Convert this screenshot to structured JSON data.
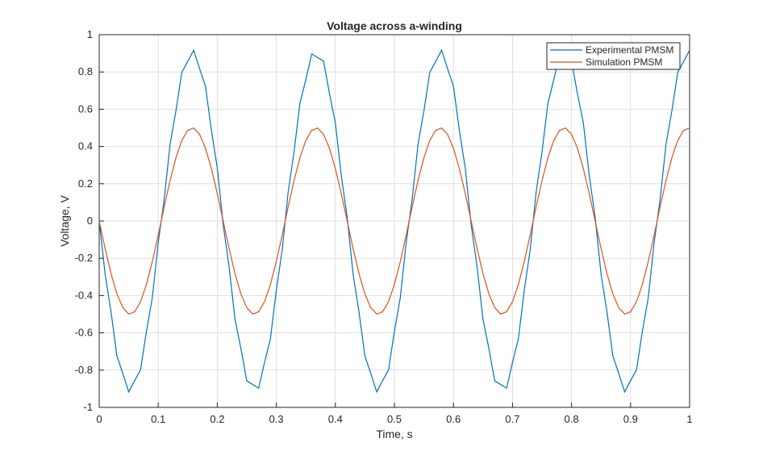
{
  "chart_data": {
    "type": "line",
    "title": "Voltage across a-winding",
    "xlabel": "Time, s",
    "ylabel": "Voltage, V",
    "x": [
      0,
      0.01,
      0.02,
      0.03,
      0.04,
      0.05,
      0.06,
      0.07,
      0.08,
      0.09,
      0.1,
      0.11,
      0.12,
      0.13,
      0.14,
      0.15,
      0.16,
      0.17,
      0.18,
      0.19,
      0.2,
      0.21,
      0.22,
      0.23,
      0.24,
      0.25,
      0.26,
      0.27,
      0.28,
      0.29,
      0.3,
      0.31,
      0.32,
      0.33,
      0.34,
      0.35,
      0.36,
      0.37,
      0.38,
      0.39,
      0.4,
      0.41,
      0.42,
      0.43,
      0.44,
      0.45,
      0.46,
      0.47,
      0.48,
      0.49,
      0.5,
      0.51,
      0.52,
      0.53,
      0.54,
      0.55,
      0.56,
      0.57,
      0.58,
      0.59,
      0.6,
      0.61,
      0.62,
      0.63,
      0.64,
      0.65,
      0.66,
      0.67,
      0.68,
      0.69,
      0.7,
      0.71,
      0.72,
      0.73,
      0.74,
      0.75,
      0.76,
      0.77,
      0.78,
      0.79,
      0.8,
      0.81,
      0.82,
      0.83,
      0.84,
      0.85,
      0.86,
      0.87,
      0.88,
      0.89,
      0.9,
      0.91,
      0.92,
      0.93,
      0.94,
      0.95,
      0.96,
      0.97,
      0.98,
      0.99,
      1
    ],
    "series": [
      {
        "name": "Experimental PMSM",
        "color": "#0072bd",
        "values": [
          0,
          -0.285,
          -0.487,
          -0.724,
          -0.818,
          -0.917,
          -0.857,
          -0.799,
          -0.592,
          -0.411,
          -0.114,
          0.114,
          0.411,
          0.592,
          0.799,
          0.857,
          0.917,
          0.818,
          0.724,
          0.487,
          0.285,
          -0.02,
          -0.245,
          -0.527,
          -0.684,
          -0.858,
          -0.877,
          -0.897,
          -0.759,
          -0.632,
          -0.371,
          -0.154,
          0.154,
          0.371,
          0.632,
          0.759,
          0.897,
          0.877,
          0.858,
          0.684,
          0.527,
          0.245,
          0.02,
          -0.285,
          -0.487,
          -0.724,
          -0.818,
          -0.917,
          -0.857,
          -0.799,
          -0.592,
          -0.411,
          -0.114,
          0.114,
          0.411,
          0.592,
          0.799,
          0.857,
          0.917,
          0.818,
          0.724,
          0.487,
          0.285,
          -0.02,
          -0.245,
          -0.527,
          -0.684,
          -0.858,
          -0.877,
          -0.897,
          -0.759,
          -0.632,
          -0.371,
          -0.154,
          0.154,
          0.371,
          0.632,
          0.759,
          0.897,
          0.877,
          0.858,
          0.684,
          0.527,
          0.245,
          0.02,
          -0.285,
          -0.487,
          -0.724,
          -0.818,
          -0.917,
          -0.857,
          -0.799,
          -0.592,
          -0.411,
          -0.114,
          0.114,
          0.411,
          0.592,
          0.799,
          0.857,
          0.917
        ]
      },
      {
        "name": "Simulation PMSM",
        "color": "#d95319",
        "values": [
          0,
          -0.147,
          -0.282,
          -0.391,
          -0.465,
          -0.499,
          -0.487,
          -0.433,
          -0.34,
          -0.217,
          -0.075,
          0.075,
          0.217,
          0.34,
          0.433,
          0.487,
          0.499,
          0.465,
          0.391,
          0.282,
          0.147,
          0,
          -0.147,
          -0.282,
          -0.391,
          -0.465,
          -0.499,
          -0.487,
          -0.433,
          -0.34,
          -0.217,
          -0.075,
          0.075,
          0.217,
          0.34,
          0.433,
          0.487,
          0.499,
          0.465,
          0.391,
          0.282,
          0.147,
          0,
          -0.147,
          -0.282,
          -0.391,
          -0.465,
          -0.499,
          -0.487,
          -0.433,
          -0.34,
          -0.217,
          -0.075,
          0.075,
          0.217,
          0.34,
          0.433,
          0.487,
          0.499,
          0.465,
          0.391,
          0.282,
          0.147,
          0,
          -0.147,
          -0.282,
          -0.391,
          -0.465,
          -0.499,
          -0.487,
          -0.433,
          -0.34,
          -0.217,
          -0.075,
          0.075,
          0.217,
          0.34,
          0.433,
          0.487,
          0.499,
          0.465,
          0.391,
          0.282,
          0.147,
          0,
          -0.147,
          -0.282,
          -0.391,
          -0.465,
          -0.499,
          -0.487,
          -0.433,
          -0.34,
          -0.217,
          -0.075,
          0.075,
          0.217,
          0.34,
          0.433,
          0.487,
          0.499
        ]
      }
    ],
    "xlim": [
      0,
      1
    ],
    "xticks": [
      0,
      0.1,
      0.2,
      0.3,
      0.4,
      0.5,
      0.6,
      0.7,
      0.8,
      0.9,
      1
    ],
    "ylim": [
      -1,
      1
    ],
    "yticks": [
      -1,
      -0.8,
      -0.6,
      -0.4,
      -0.2,
      0,
      0.2,
      0.4,
      0.6,
      0.8,
      1
    ],
    "grid": true,
    "legend": "top-right"
  }
}
